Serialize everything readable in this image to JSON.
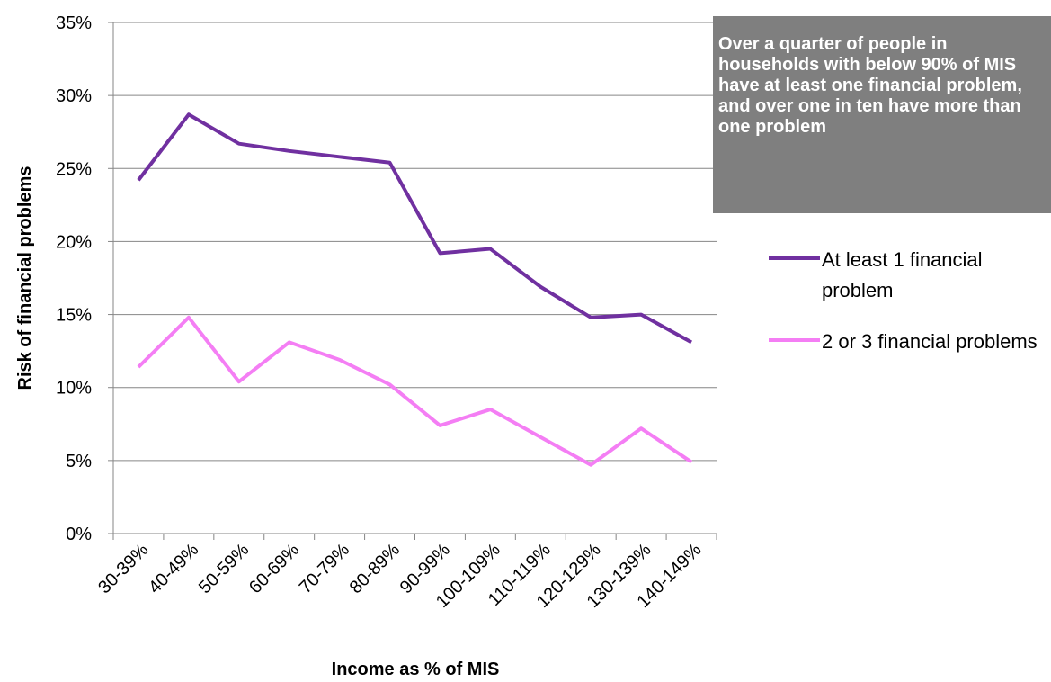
{
  "chart_data": {
    "type": "line",
    "y_label": "Risk  of financial problems",
    "x_label": "Income as % of MIS",
    "annotation": "Over a quarter of people in households with below 90% of MIS have at least one financial problem, and over one in ten have more than one problem",
    "categories": [
      "30-39%",
      "40-49%",
      "50-59%",
      "60-69%",
      "70-79%",
      "80-89%",
      "90-99%",
      "100-109%",
      "110-119%",
      "120-129%",
      "130-139%",
      "140-149%"
    ],
    "series": [
      {
        "name": "At least 1 financial problem",
        "color": "#7030a0",
        "values": [
          24.2,
          28.7,
          26.7,
          26.2,
          25.8,
          25.4,
          19.2,
          19.5,
          16.9,
          14.8,
          15.0,
          13.1
        ]
      },
      {
        "name": "2 or 3 financial problems",
        "color": "#f47ef4",
        "values": [
          11.4,
          14.8,
          10.4,
          13.1,
          11.9,
          10.2,
          7.4,
          8.5,
          6.6,
          4.7,
          7.2,
          4.9
        ]
      }
    ],
    "ylim": [
      0,
      35
    ],
    "yticks": [
      {
        "value": 0,
        "label": "0%"
      },
      {
        "value": 5,
        "label": "5%"
      },
      {
        "value": 10,
        "label": "10%"
      },
      {
        "value": 15,
        "label": "15%"
      },
      {
        "value": 20,
        "label": "20%"
      },
      {
        "value": 25,
        "label": "25%"
      },
      {
        "value": 30,
        "label": "30%"
      },
      {
        "value": 35,
        "label": "35%"
      }
    ],
    "grid": true,
    "legend": "right"
  }
}
